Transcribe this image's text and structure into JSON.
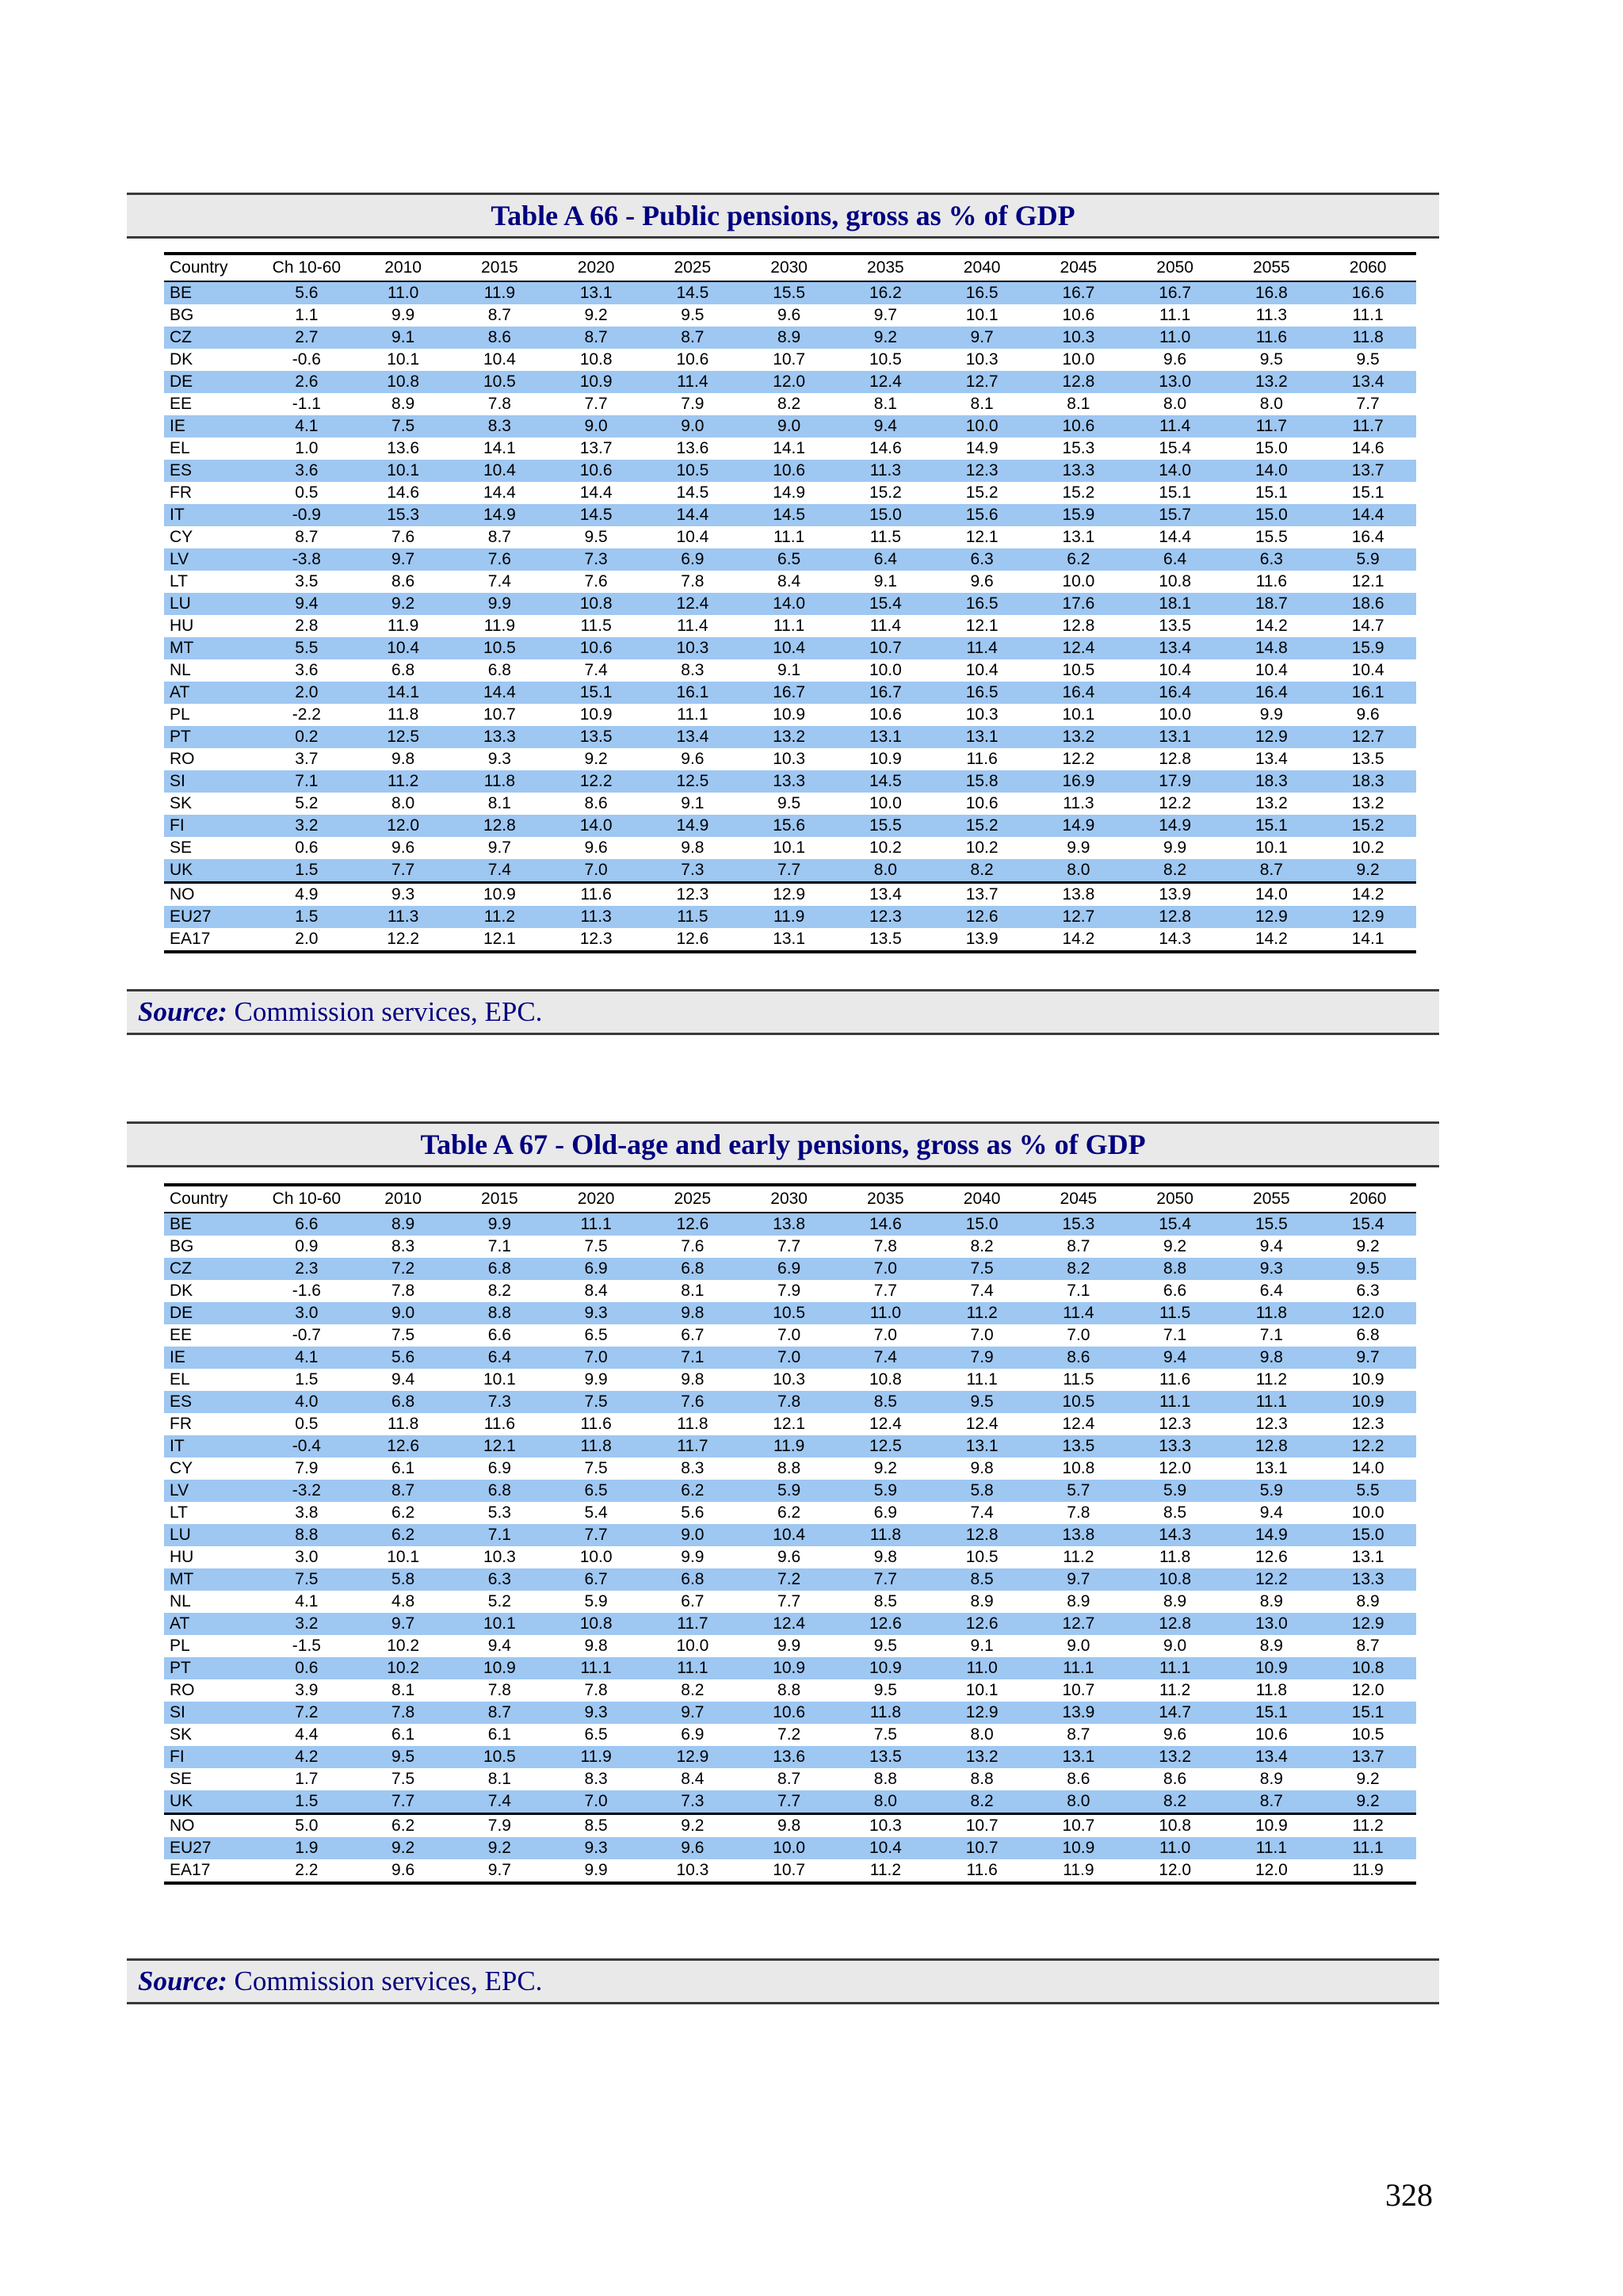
{
  "page": {
    "number": "328"
  },
  "colors": {
    "highlight": "#9ec7f2",
    "title": "#000080",
    "bar_bg": "#e9e9e9",
    "border": "#000000"
  },
  "table1": {
    "title": "Table A 66 - Public pensions, gross as % of GDP",
    "columns": [
      "Country",
      "Ch 10-60",
      "2010",
      "2015",
      "2020",
      "2025",
      "2030",
      "2035",
      "2040",
      "2045",
      "2050",
      "2055",
      "2060"
    ],
    "rows": [
      {
        "country": "BE",
        "values": [
          "5.6",
          "11.0",
          "11.9",
          "13.1",
          "14.5",
          "15.5",
          "16.2",
          "16.5",
          "16.7",
          "16.7",
          "16.8",
          "16.6"
        ]
      },
      {
        "country": "BG",
        "values": [
          "1.1",
          "9.9",
          "8.7",
          "9.2",
          "9.5",
          "9.6",
          "9.7",
          "10.1",
          "10.6",
          "11.1",
          "11.3",
          "11.1"
        ]
      },
      {
        "country": "CZ",
        "values": [
          "2.7",
          "9.1",
          "8.6",
          "8.7",
          "8.7",
          "8.9",
          "9.2",
          "9.7",
          "10.3",
          "11.0",
          "11.6",
          "11.8"
        ]
      },
      {
        "country": "DK",
        "values": [
          "-0.6",
          "10.1",
          "10.4",
          "10.8",
          "10.6",
          "10.7",
          "10.5",
          "10.3",
          "10.0",
          "9.6",
          "9.5",
          "9.5"
        ]
      },
      {
        "country": "DE",
        "values": [
          "2.6",
          "10.8",
          "10.5",
          "10.9",
          "11.4",
          "12.0",
          "12.4",
          "12.7",
          "12.8",
          "13.0",
          "13.2",
          "13.4"
        ]
      },
      {
        "country": "EE",
        "values": [
          "-1.1",
          "8.9",
          "7.8",
          "7.7",
          "7.9",
          "8.2",
          "8.1",
          "8.1",
          "8.1",
          "8.0",
          "8.0",
          "7.7"
        ]
      },
      {
        "country": "IE",
        "values": [
          "4.1",
          "7.5",
          "8.3",
          "9.0",
          "9.0",
          "9.0",
          "9.4",
          "10.0",
          "10.6",
          "11.4",
          "11.7",
          "11.7"
        ]
      },
      {
        "country": "EL",
        "values": [
          "1.0",
          "13.6",
          "14.1",
          "13.7",
          "13.6",
          "14.1",
          "14.6",
          "14.9",
          "15.3",
          "15.4",
          "15.0",
          "14.6"
        ]
      },
      {
        "country": "ES",
        "values": [
          "3.6",
          "10.1",
          "10.4",
          "10.6",
          "10.5",
          "10.6",
          "11.3",
          "12.3",
          "13.3",
          "14.0",
          "14.0",
          "13.7"
        ]
      },
      {
        "country": "FR",
        "values": [
          "0.5",
          "14.6",
          "14.4",
          "14.4",
          "14.5",
          "14.9",
          "15.2",
          "15.2",
          "15.2",
          "15.1",
          "15.1",
          "15.1"
        ]
      },
      {
        "country": "IT",
        "values": [
          "-0.9",
          "15.3",
          "14.9",
          "14.5",
          "14.4",
          "14.5",
          "15.0",
          "15.6",
          "15.9",
          "15.7",
          "15.0",
          "14.4"
        ]
      },
      {
        "country": "CY",
        "values": [
          "8.7",
          "7.6",
          "8.7",
          "9.5",
          "10.4",
          "11.1",
          "11.5",
          "12.1",
          "13.1",
          "14.4",
          "15.5",
          "16.4"
        ]
      },
      {
        "country": "LV",
        "values": [
          "-3.8",
          "9.7",
          "7.6",
          "7.3",
          "6.9",
          "6.5",
          "6.4",
          "6.3",
          "6.2",
          "6.4",
          "6.3",
          "5.9"
        ]
      },
      {
        "country": "LT",
        "values": [
          "3.5",
          "8.6",
          "7.4",
          "7.6",
          "7.8",
          "8.4",
          "9.1",
          "9.6",
          "10.0",
          "10.8",
          "11.6",
          "12.1"
        ]
      },
      {
        "country": "LU",
        "values": [
          "9.4",
          "9.2",
          "9.9",
          "10.8",
          "12.4",
          "14.0",
          "15.4",
          "16.5",
          "17.6",
          "18.1",
          "18.7",
          "18.6"
        ]
      },
      {
        "country": "HU",
        "values": [
          "2.8",
          "11.9",
          "11.9",
          "11.5",
          "11.4",
          "11.1",
          "11.4",
          "12.1",
          "12.8",
          "13.5",
          "14.2",
          "14.7"
        ]
      },
      {
        "country": "MT",
        "values": [
          "5.5",
          "10.4",
          "10.5",
          "10.6",
          "10.3",
          "10.4",
          "10.7",
          "11.4",
          "12.4",
          "13.4",
          "14.8",
          "15.9"
        ]
      },
      {
        "country": "NL",
        "values": [
          "3.6",
          "6.8",
          "6.8",
          "7.4",
          "8.3",
          "9.1",
          "10.0",
          "10.4",
          "10.5",
          "10.4",
          "10.4",
          "10.4"
        ]
      },
      {
        "country": "AT",
        "values": [
          "2.0",
          "14.1",
          "14.4",
          "15.1",
          "16.1",
          "16.7",
          "16.7",
          "16.5",
          "16.4",
          "16.4",
          "16.4",
          "16.1"
        ]
      },
      {
        "country": "PL",
        "values": [
          "-2.2",
          "11.8",
          "10.7",
          "10.9",
          "11.1",
          "10.9",
          "10.6",
          "10.3",
          "10.1",
          "10.0",
          "9.9",
          "9.6"
        ]
      },
      {
        "country": "PT",
        "values": [
          "0.2",
          "12.5",
          "13.3",
          "13.5",
          "13.4",
          "13.2",
          "13.1",
          "13.1",
          "13.2",
          "13.1",
          "12.9",
          "12.7"
        ]
      },
      {
        "country": "RO",
        "values": [
          "3.7",
          "9.8",
          "9.3",
          "9.2",
          "9.6",
          "10.3",
          "10.9",
          "11.6",
          "12.2",
          "12.8",
          "13.4",
          "13.5"
        ]
      },
      {
        "country": "SI",
        "values": [
          "7.1",
          "11.2",
          "11.8",
          "12.2",
          "12.5",
          "13.3",
          "14.5",
          "15.8",
          "16.9",
          "17.9",
          "18.3",
          "18.3"
        ]
      },
      {
        "country": "SK",
        "values": [
          "5.2",
          "8.0",
          "8.1",
          "8.6",
          "9.1",
          "9.5",
          "10.0",
          "10.6",
          "11.3",
          "12.2",
          "13.2",
          "13.2"
        ]
      },
      {
        "country": "FI",
        "values": [
          "3.2",
          "12.0",
          "12.8",
          "14.0",
          "14.9",
          "15.6",
          "15.5",
          "15.2",
          "14.9",
          "14.9",
          "15.1",
          "15.2"
        ]
      },
      {
        "country": "SE",
        "values": [
          "0.6",
          "9.6",
          "9.7",
          "9.6",
          "9.8",
          "10.1",
          "10.2",
          "10.2",
          "9.9",
          "9.9",
          "10.1",
          "10.2"
        ]
      },
      {
        "country": "UK",
        "values": [
          "1.5",
          "7.7",
          "7.4",
          "7.0",
          "7.3",
          "7.7",
          "8.0",
          "8.2",
          "8.0",
          "8.2",
          "8.7",
          "9.2"
        ]
      },
      {
        "country": "NO",
        "sep": true,
        "values": [
          "4.9",
          "9.3",
          "10.9",
          "11.6",
          "12.3",
          "12.9",
          "13.4",
          "13.7",
          "13.8",
          "13.9",
          "14.0",
          "14.2"
        ]
      },
      {
        "country": "EU27",
        "values": [
          "1.5",
          "11.3",
          "11.2",
          "11.3",
          "11.5",
          "11.9",
          "12.3",
          "12.6",
          "12.7",
          "12.8",
          "12.9",
          "12.9"
        ]
      },
      {
        "country": "EA17",
        "values": [
          "2.0",
          "12.2",
          "12.1",
          "12.3",
          "12.6",
          "13.1",
          "13.5",
          "13.9",
          "14.2",
          "14.3",
          "14.2",
          "14.1"
        ]
      }
    ],
    "source_label": "Source:",
    "source_text": " Commission services, EPC."
  },
  "table2": {
    "title": "Table A 67 - Old-age and early pensions, gross as % of GDP",
    "columns": [
      "Country",
      "Ch 10-60",
      "2010",
      "2015",
      "2020",
      "2025",
      "2030",
      "2035",
      "2040",
      "2045",
      "2050",
      "2055",
      "2060"
    ],
    "rows": [
      {
        "country": "BE",
        "values": [
          "6.6",
          "8.9",
          "9.9",
          "11.1",
          "12.6",
          "13.8",
          "14.6",
          "15.0",
          "15.3",
          "15.4",
          "15.5",
          "15.4"
        ]
      },
      {
        "country": "BG",
        "values": [
          "0.9",
          "8.3",
          "7.1",
          "7.5",
          "7.6",
          "7.7",
          "7.8",
          "8.2",
          "8.7",
          "9.2",
          "9.4",
          "9.2"
        ]
      },
      {
        "country": "CZ",
        "values": [
          "2.3",
          "7.2",
          "6.8",
          "6.9",
          "6.8",
          "6.9",
          "7.0",
          "7.5",
          "8.2",
          "8.8",
          "9.3",
          "9.5"
        ]
      },
      {
        "country": "DK",
        "values": [
          "-1.6",
          "7.8",
          "8.2",
          "8.4",
          "8.1",
          "7.9",
          "7.7",
          "7.4",
          "7.1",
          "6.6",
          "6.4",
          "6.3"
        ]
      },
      {
        "country": "DE",
        "values": [
          "3.0",
          "9.0",
          "8.8",
          "9.3",
          "9.8",
          "10.5",
          "11.0",
          "11.2",
          "11.4",
          "11.5",
          "11.8",
          "12.0"
        ]
      },
      {
        "country": "EE",
        "values": [
          "-0.7",
          "7.5",
          "6.6",
          "6.5",
          "6.7",
          "7.0",
          "7.0",
          "7.0",
          "7.0",
          "7.1",
          "7.1",
          "6.8"
        ]
      },
      {
        "country": "IE",
        "values": [
          "4.1",
          "5.6",
          "6.4",
          "7.0",
          "7.1",
          "7.0",
          "7.4",
          "7.9",
          "8.6",
          "9.4",
          "9.8",
          "9.7"
        ]
      },
      {
        "country": "EL",
        "values": [
          "1.5",
          "9.4",
          "10.1",
          "9.9",
          "9.8",
          "10.3",
          "10.8",
          "11.1",
          "11.5",
          "11.6",
          "11.2",
          "10.9"
        ]
      },
      {
        "country": "ES",
        "values": [
          "4.0",
          "6.8",
          "7.3",
          "7.5",
          "7.6",
          "7.8",
          "8.5",
          "9.5",
          "10.5",
          "11.1",
          "11.1",
          "10.9"
        ]
      },
      {
        "country": "FR",
        "values": [
          "0.5",
          "11.8",
          "11.6",
          "11.6",
          "11.8",
          "12.1",
          "12.4",
          "12.4",
          "12.4",
          "12.3",
          "12.3",
          "12.3"
        ]
      },
      {
        "country": "IT",
        "values": [
          "-0.4",
          "12.6",
          "12.1",
          "11.8",
          "11.7",
          "11.9",
          "12.5",
          "13.1",
          "13.5",
          "13.3",
          "12.8",
          "12.2"
        ]
      },
      {
        "country": "CY",
        "values": [
          "7.9",
          "6.1",
          "6.9",
          "7.5",
          "8.3",
          "8.8",
          "9.2",
          "9.8",
          "10.8",
          "12.0",
          "13.1",
          "14.0"
        ]
      },
      {
        "country": "LV",
        "values": [
          "-3.2",
          "8.7",
          "6.8",
          "6.5",
          "6.2",
          "5.9",
          "5.9",
          "5.8",
          "5.7",
          "5.9",
          "5.9",
          "5.5"
        ]
      },
      {
        "country": "LT",
        "values": [
          "3.8",
          "6.2",
          "5.3",
          "5.4",
          "5.6",
          "6.2",
          "6.9",
          "7.4",
          "7.8",
          "8.5",
          "9.4",
          "10.0"
        ]
      },
      {
        "country": "LU",
        "values": [
          "8.8",
          "6.2",
          "7.1",
          "7.7",
          "9.0",
          "10.4",
          "11.8",
          "12.8",
          "13.8",
          "14.3",
          "14.9",
          "15.0"
        ]
      },
      {
        "country": "HU",
        "values": [
          "3.0",
          "10.1",
          "10.3",
          "10.0",
          "9.9",
          "9.6",
          "9.8",
          "10.5",
          "11.2",
          "11.8",
          "12.6",
          "13.1"
        ]
      },
      {
        "country": "MT",
        "values": [
          "7.5",
          "5.8",
          "6.3",
          "6.7",
          "6.8",
          "7.2",
          "7.7",
          "8.5",
          "9.7",
          "10.8",
          "12.2",
          "13.3"
        ]
      },
      {
        "country": "NL",
        "values": [
          "4.1",
          "4.8",
          "5.2",
          "5.9",
          "6.7",
          "7.7",
          "8.5",
          "8.9",
          "8.9",
          "8.9",
          "8.9",
          "8.9"
        ]
      },
      {
        "country": "AT",
        "values": [
          "3.2",
          "9.7",
          "10.1",
          "10.8",
          "11.7",
          "12.4",
          "12.6",
          "12.6",
          "12.7",
          "12.8",
          "13.0",
          "12.9"
        ]
      },
      {
        "country": "PL",
        "values": [
          "-1.5",
          "10.2",
          "9.4",
          "9.8",
          "10.0",
          "9.9",
          "9.5",
          "9.1",
          "9.0",
          "9.0",
          "8.9",
          "8.7"
        ]
      },
      {
        "country": "PT",
        "values": [
          "0.6",
          "10.2",
          "10.9",
          "11.1",
          "11.1",
          "10.9",
          "10.9",
          "11.0",
          "11.1",
          "11.1",
          "10.9",
          "10.8"
        ]
      },
      {
        "country": "RO",
        "values": [
          "3.9",
          "8.1",
          "7.8",
          "7.8",
          "8.2",
          "8.8",
          "9.5",
          "10.1",
          "10.7",
          "11.2",
          "11.8",
          "12.0"
        ]
      },
      {
        "country": "SI",
        "values": [
          "7.2",
          "7.8",
          "8.7",
          "9.3",
          "9.7",
          "10.6",
          "11.8",
          "12.9",
          "13.9",
          "14.7",
          "15.1",
          "15.1"
        ]
      },
      {
        "country": "SK",
        "values": [
          "4.4",
          "6.1",
          "6.1",
          "6.5",
          "6.9",
          "7.2",
          "7.5",
          "8.0",
          "8.7",
          "9.6",
          "10.6",
          "10.5"
        ]
      },
      {
        "country": "FI",
        "values": [
          "4.2",
          "9.5",
          "10.5",
          "11.9",
          "12.9",
          "13.6",
          "13.5",
          "13.2",
          "13.1",
          "13.2",
          "13.4",
          "13.7"
        ]
      },
      {
        "country": "SE",
        "values": [
          "1.7",
          "7.5",
          "8.1",
          "8.3",
          "8.4",
          "8.7",
          "8.8",
          "8.8",
          "8.6",
          "8.6",
          "8.9",
          "9.2"
        ]
      },
      {
        "country": "UK",
        "values": [
          "1.5",
          "7.7",
          "7.4",
          "7.0",
          "7.3",
          "7.7",
          "8.0",
          "8.2",
          "8.0",
          "8.2",
          "8.7",
          "9.2"
        ]
      },
      {
        "country": "NO",
        "sep": true,
        "values": [
          "5.0",
          "6.2",
          "7.9",
          "8.5",
          "9.2",
          "9.8",
          "10.3",
          "10.7",
          "10.7",
          "10.8",
          "10.9",
          "11.2"
        ]
      },
      {
        "country": "EU27",
        "values": [
          "1.9",
          "9.2",
          "9.2",
          "9.3",
          "9.6",
          "10.0",
          "10.4",
          "10.7",
          "10.9",
          "11.0",
          "11.1",
          "11.1"
        ]
      },
      {
        "country": "EA17",
        "values": [
          "2.2",
          "9.6",
          "9.7",
          "9.9",
          "10.3",
          "10.7",
          "11.2",
          "11.6",
          "11.9",
          "12.0",
          "12.0",
          "11.9"
        ]
      }
    ],
    "source_label": "Source:",
    "source_text": " Commission services, EPC."
  }
}
